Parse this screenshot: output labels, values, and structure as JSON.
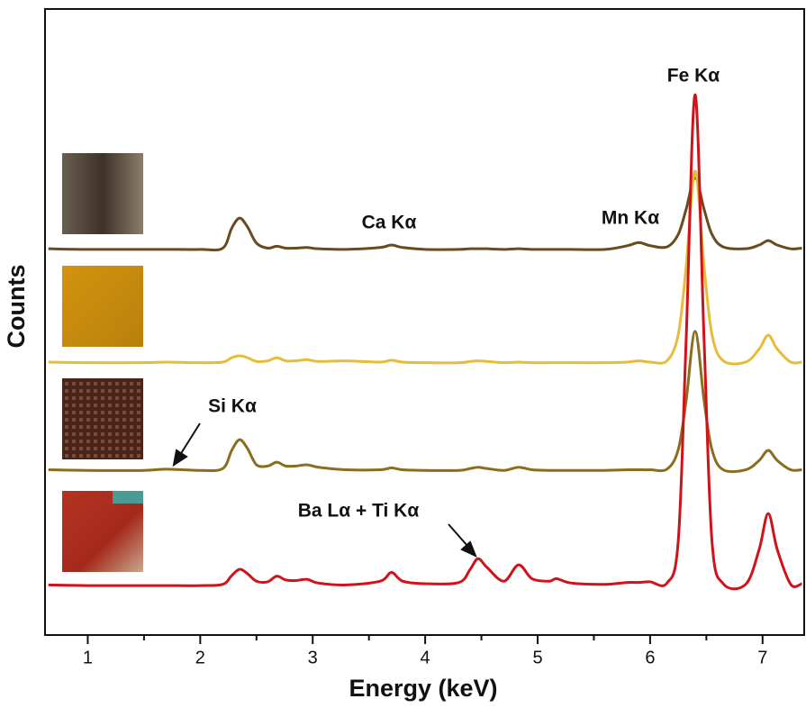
{
  "chart_data": {
    "type": "line",
    "xlabel": "Energy (keV)",
    "ylabel": "Counts",
    "annotations": [
      "Fe Kα",
      "Ca Kα",
      "Mn Kα",
      "Si Kα",
      "Ba Lα + Ti Kα"
    ],
    "x": [
      0.65,
      1.0,
      1.5,
      1.7,
      2.0,
      2.2,
      2.28,
      2.35,
      2.42,
      2.5,
      2.6,
      2.68,
      2.76,
      2.85,
      2.95,
      3.05,
      3.3,
      3.6,
      3.7,
      3.8,
      4.0,
      4.3,
      4.4,
      4.47,
      4.55,
      4.7,
      4.83,
      4.95,
      5.1,
      5.17,
      5.3,
      5.6,
      5.8,
      5.9,
      6.0,
      6.15,
      6.25,
      6.32,
      6.4,
      6.48,
      6.55,
      6.65,
      6.85,
      6.97,
      7.05,
      7.13,
      7.25,
      7.35
    ],
    "series": [
      {
        "color": "#6b4a1d",
        "values": [
          61.7,
          61.6,
          61.6,
          61.6,
          61.6,
          61.8,
          65.0,
          66.6,
          65.2,
          62.6,
          61.8,
          62.1,
          61.8,
          61.8,
          61.9,
          61.7,
          61.6,
          61.9,
          62.3,
          61.9,
          61.6,
          61.6,
          61.7,
          61.7,
          61.7,
          61.6,
          61.7,
          61.6,
          61.6,
          61.6,
          61.6,
          61.6,
          62.2,
          62.7,
          62.2,
          62.0,
          64.0,
          68.0,
          73.0,
          68.0,
          64.0,
          62.0,
          61.7,
          62.3,
          63.0,
          62.3,
          61.7,
          61.8
        ]
      },
      {
        "color": "#e6bd3a",
        "values": [
          43.6,
          43.5,
          43.5,
          43.6,
          43.5,
          43.6,
          44.3,
          44.6,
          44.3,
          43.7,
          43.8,
          44.3,
          43.8,
          43.8,
          44.0,
          43.7,
          43.8,
          43.6,
          43.9,
          43.6,
          43.5,
          43.5,
          43.7,
          43.8,
          43.7,
          43.5,
          43.6,
          43.5,
          43.5,
          43.5,
          43.5,
          43.5,
          43.6,
          43.8,
          43.6,
          43.8,
          48.0,
          58.8,
          74.1,
          58.8,
          48.0,
          43.8,
          43.6,
          45.7,
          47.9,
          45.7,
          43.6,
          43.6
        ]
      },
      {
        "color": "#8b6d1e",
        "values": [
          26.4,
          26.3,
          26.3,
          26.5,
          26.3,
          26.6,
          29.5,
          31.2,
          29.8,
          27.2,
          27.0,
          27.6,
          27.0,
          27.0,
          27.2,
          26.8,
          26.4,
          26.4,
          26.7,
          26.4,
          26.3,
          26.3,
          26.6,
          26.8,
          26.6,
          26.3,
          26.8,
          26.4,
          26.3,
          26.3,
          26.3,
          26.3,
          26.4,
          26.4,
          26.4,
          26.5,
          29.6,
          37.4,
          48.5,
          37.4,
          29.6,
          26.4,
          26.4,
          27.9,
          29.5,
          27.9,
          26.4,
          26.4
        ]
      },
      {
        "color": "#d0131a",
        "values": [
          8.0,
          7.9,
          7.9,
          7.9,
          7.9,
          8.1,
          9.5,
          10.5,
          9.8,
          8.6,
          8.5,
          9.4,
          8.8,
          8.7,
          8.9,
          8.3,
          8.0,
          8.6,
          10.0,
          8.6,
          8.2,
          8.4,
          10.5,
          12.2,
          10.8,
          8.6,
          11.2,
          9.0,
          8.6,
          9.0,
          8.3,
          8.1,
          8.4,
          8.4,
          8.5,
          8.3,
          15.0,
          47.0,
          86.3,
          47.0,
          15.0,
          8.2,
          8.1,
          13.7,
          19.4,
          13.7,
          8.1,
          8.2
        ]
      }
    ],
    "xlim": [
      0.62,
      7.37
    ],
    "ylim": [
      0,
      100
    ],
    "xticks": [
      1,
      2,
      3,
      4,
      5,
      6,
      7
    ],
    "xminorticks": [
      1.5,
      2.5,
      3.5,
      4.5,
      5.5,
      6.5
    ]
  }
}
